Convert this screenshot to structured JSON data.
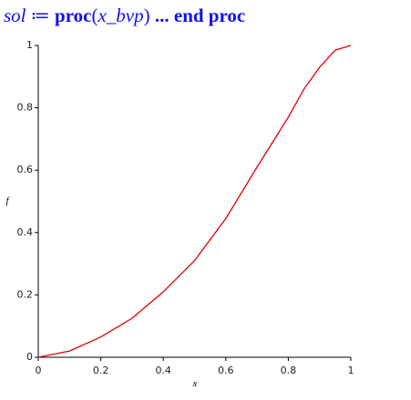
{
  "output": {
    "parts": [
      "sol",
      "≔",
      "proc",
      "(",
      "x_bvp",
      ")",
      "...",
      "end proc"
    ]
  },
  "chart_data": {
    "type": "line",
    "x": [
      0,
      0.1,
      0.2,
      0.3,
      0.4,
      0.5,
      0.6,
      0.7,
      0.8,
      0.85,
      0.9,
      0.95,
      1
    ],
    "series": [
      {
        "color": "#e00000",
        "values": [
          0,
          0.02,
          0.065,
          0.125,
          0.21,
          0.31,
          0.445,
          0.61,
          0.77,
          0.86,
          0.93,
          0.985,
          1
        ]
      }
    ],
    "xlim": [
      0,
      1
    ],
    "ylim": [
      0,
      1
    ],
    "xticks": [
      0,
      0.2,
      0.4,
      0.6,
      0.8,
      1
    ],
    "yticks": [
      0,
      0.2,
      0.4,
      0.6,
      0.8,
      1
    ],
    "xlabel": "x",
    "ylabel": "f"
  }
}
